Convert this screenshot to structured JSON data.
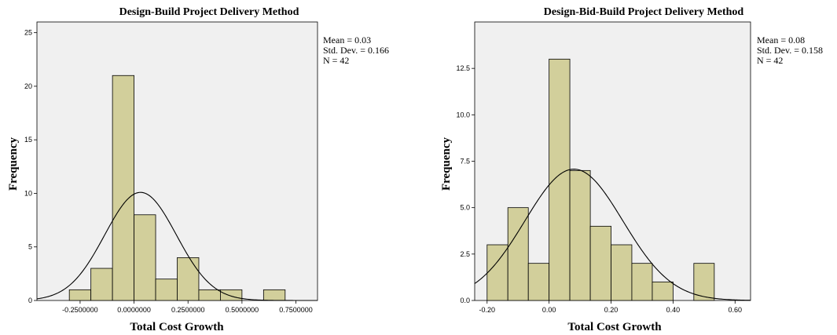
{
  "chart_data": [
    {
      "type": "bar",
      "subtype": "histogram",
      "title": "Design-Build Project Delivery Method",
      "xlabel": "Total Cost Growth",
      "ylabel": "Frequency",
      "xlim": [
        -0.45,
        0.85
      ],
      "ylim": [
        0,
        26
      ],
      "bin_width": 0.1,
      "bins": [
        {
          "from": -0.3,
          "to": -0.2,
          "count": 1
        },
        {
          "from": -0.2,
          "to": -0.1,
          "count": 3
        },
        {
          "from": -0.1,
          "to": 0.0,
          "count": 21
        },
        {
          "from": 0.0,
          "to": 0.1,
          "count": 8
        },
        {
          "from": 0.1,
          "to": 0.2,
          "count": 2
        },
        {
          "from": 0.2,
          "to": 0.3,
          "count": 4
        },
        {
          "from": 0.3,
          "to": 0.4,
          "count": 1
        },
        {
          "from": 0.4,
          "to": 0.5,
          "count": 1
        },
        {
          "from": 0.6,
          "to": 0.7,
          "count": 1
        }
      ],
      "x_ticks": [
        {
          "value": -0.25,
          "label": "-0.2500000"
        },
        {
          "value": 0.0,
          "label": "0.0000000"
        },
        {
          "value": 0.25,
          "label": "0.2500000"
        },
        {
          "value": 0.5,
          "label": "0.5000000"
        },
        {
          "value": 0.75,
          "label": "0.7500000"
        }
      ],
      "y_ticks": [
        {
          "value": 0,
          "label": "0"
        },
        {
          "value": 5,
          "label": "5"
        },
        {
          "value": 10,
          "label": "10"
        },
        {
          "value": 15,
          "label": "15"
        },
        {
          "value": 20,
          "label": "20"
        },
        {
          "value": 25,
          "label": "25"
        }
      ],
      "normal_curve": {
        "mean": 0.03,
        "sd": 0.166,
        "n": 42
      },
      "stats": [
        "Mean = 0.03",
        "Std. Dev. = 0.166",
        "N = 42"
      ],
      "legend_position": "top-right outside"
    },
    {
      "type": "bar",
      "subtype": "histogram",
      "title": "Design-Bid-Build Project Delivery Method",
      "xlabel": "Total Cost Growth",
      "ylabel": "Frequency",
      "xlim": [
        -0.24,
        0.65
      ],
      "ylim": [
        0,
        15
      ],
      "bin_width": 0.0667,
      "bins": [
        {
          "from": -0.2,
          "to": -0.133,
          "count": 3
        },
        {
          "from": -0.133,
          "to": -0.067,
          "count": 5
        },
        {
          "from": -0.067,
          "to": 0.0,
          "count": 2
        },
        {
          "from": 0.0,
          "to": 0.067,
          "count": 13
        },
        {
          "from": 0.067,
          "to": 0.133,
          "count": 7
        },
        {
          "from": 0.133,
          "to": 0.2,
          "count": 4
        },
        {
          "from": 0.2,
          "to": 0.267,
          "count": 3
        },
        {
          "from": 0.267,
          "to": 0.333,
          "count": 2
        },
        {
          "from": 0.333,
          "to": 0.4,
          "count": 1
        },
        {
          "from": 0.467,
          "to": 0.533,
          "count": 2
        }
      ],
      "x_ticks": [
        {
          "value": -0.2,
          "label": "-0.20"
        },
        {
          "value": 0.0,
          "label": "0.00"
        },
        {
          "value": 0.2,
          "label": "0.20"
        },
        {
          "value": 0.4,
          "label": "0.40"
        },
        {
          "value": 0.6,
          "label": "0.60"
        }
      ],
      "y_ticks": [
        {
          "value": 0,
          "label": "0.0"
        },
        {
          "value": 2.5,
          "label": "2.5"
        },
        {
          "value": 5,
          "label": "5.0"
        },
        {
          "value": 7.5,
          "label": "7.5"
        },
        {
          "value": 10,
          "label": "10.0"
        },
        {
          "value": 12.5,
          "label": "12.5"
        }
      ],
      "normal_curve": {
        "mean": 0.08,
        "sd": 0.158,
        "n": 42
      },
      "stats": [
        "Mean = 0.08",
        "Std. Dev. = 0.158",
        "N = 42"
      ],
      "legend_position": "top-right outside"
    }
  ]
}
